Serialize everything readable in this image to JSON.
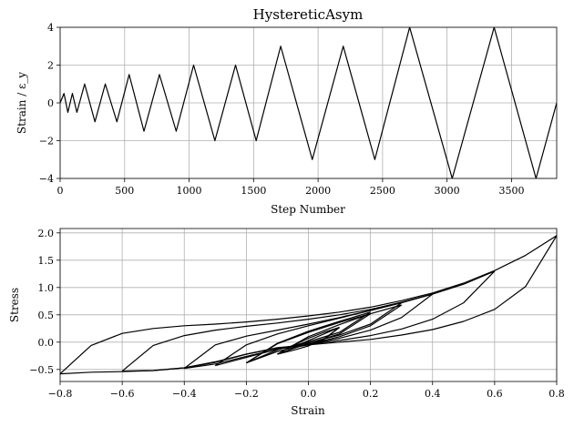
{
  "chart_data": [
    {
      "type": "line",
      "title": "HystereticAsym",
      "xlabel": "Step Number",
      "ylabel": "Strain / ε_y",
      "xlim": [
        0,
        3850
      ],
      "ylim": [
        -4,
        4
      ],
      "xticks": [
        0,
        500,
        1000,
        1500,
        2000,
        2500,
        3000,
        3500
      ],
      "yticks": [
        -4,
        -2,
        0,
        2,
        4
      ],
      "grid": true,
      "series": [
        {
          "x": [
            0,
            30,
            60,
            95,
            130,
            190,
            270,
            350,
            440,
            535,
            650,
            770,
            900,
            1035,
            1200,
            1360,
            1520,
            1710,
            1955,
            2195,
            2440,
            2710,
            3040,
            3365,
            3690,
            3850
          ],
          "y": [
            0,
            0.5,
            -0.5,
            0.5,
            -0.5,
            1,
            -1,
            1,
            -1,
            1.5,
            -1.5,
            1.5,
            -1.5,
            2,
            -2,
            2,
            -2,
            3,
            -3,
            3,
            -3,
            4,
            -4,
            4,
            -4,
            0
          ]
        }
      ]
    },
    {
      "type": "line",
      "title": "",
      "xlabel": "Strain",
      "ylabel": "Stress",
      "xlim": [
        -0.8,
        0.8
      ],
      "ylim": [
        -0.72,
        2.08
      ],
      "xticks": [
        -0.8,
        -0.6,
        -0.4,
        -0.2,
        0.0,
        0.2,
        0.4,
        0.6,
        0.8
      ],
      "xtick_labels": [
        "−0.8",
        "−0.6",
        "−0.4",
        "−0.2",
        "0.0",
        "0.2",
        "0.4",
        "0.6",
        "0.8"
      ],
      "yticks": [
        -0.5,
        0.0,
        0.5,
        1.0,
        1.5,
        2.0
      ],
      "ytick_labels": [
        "−0.5",
        "0.0",
        "0.5",
        "1.0",
        "1.5",
        "2.0"
      ],
      "grid": true,
      "series": [
        {
          "x": [
            -0.8,
            -0.7,
            -0.6,
            -0.5,
            -0.4,
            -0.3,
            -0.2,
            -0.1,
            0.0,
            0.1,
            0.2,
            0.3,
            0.4,
            0.5,
            0.6,
            0.7,
            0.8
          ],
          "y": [
            -0.58,
            -0.06,
            0.16,
            0.25,
            0.3,
            0.33,
            0.37,
            0.42,
            0.48,
            0.55,
            0.64,
            0.76,
            0.9,
            1.08,
            1.31,
            1.59,
            1.95
          ]
        },
        {
          "x": [
            0.8,
            0.7,
            0.6,
            0.5,
            0.4,
            0.3,
            0.2,
            0.1,
            0.0,
            -0.1,
            -0.2,
            -0.3,
            -0.4,
            -0.5,
            -0.6,
            -0.7,
            -0.8
          ],
          "y": [
            1.95,
            1.02,
            0.6,
            0.38,
            0.23,
            0.13,
            0.05,
            0.0,
            -0.05,
            -0.1,
            -0.22,
            -0.36,
            -0.47,
            -0.52,
            -0.54,
            -0.55,
            -0.58
          ]
        },
        {
          "x": [
            -0.6,
            -0.5,
            -0.4,
            -0.3,
            -0.2,
            -0.1,
            0.0,
            0.1,
            0.2,
            0.3,
            0.4,
            0.5,
            0.6
          ],
          "y": [
            -0.53,
            -0.06,
            0.12,
            0.22,
            0.29,
            0.35,
            0.42,
            0.5,
            0.6,
            0.73,
            0.88,
            1.06,
            1.3
          ]
        },
        {
          "x": [
            0.6,
            0.5,
            0.4,
            0.3,
            0.2,
            0.1,
            0.0,
            -0.1,
            -0.2,
            -0.3,
            -0.4,
            -0.5,
            -0.6
          ],
          "y": [
            1.3,
            0.72,
            0.42,
            0.24,
            0.12,
            0.03,
            -0.04,
            -0.11,
            -0.22,
            -0.37,
            -0.47,
            -0.52,
            -0.53
          ]
        },
        {
          "x": [
            -0.4,
            -0.3,
            -0.2,
            -0.1,
            0.0,
            0.1,
            0.2,
            0.3,
            0.4
          ],
          "y": [
            -0.48,
            -0.05,
            0.11,
            0.22,
            0.33,
            0.45,
            0.58,
            0.72,
            0.88
          ]
        },
        {
          "x": [
            0.4,
            0.3,
            0.2,
            0.1,
            0.0,
            -0.1,
            -0.2,
            -0.3,
            -0.4
          ],
          "y": [
            0.88,
            0.45,
            0.22,
            0.07,
            -0.04,
            -0.13,
            -0.26,
            -0.4,
            -0.48
          ]
        },
        {
          "x": [
            -0.3,
            -0.2,
            -0.1,
            0.0,
            0.1,
            0.2,
            0.3
          ],
          "y": [
            -0.43,
            -0.05,
            0.15,
            0.3,
            0.44,
            0.58,
            0.72
          ]
        },
        {
          "x": [
            0.3,
            0.2,
            0.1,
            0.0,
            -0.1,
            -0.2,
            -0.3
          ],
          "y": [
            0.72,
            0.33,
            0.13,
            -0.01,
            -0.13,
            -0.28,
            -0.43
          ]
        },
        {
          "x": [
            -0.2,
            -0.1,
            0.0,
            0.1,
            0.2,
            0.3
          ],
          "y": [
            -0.38,
            -0.03,
            0.18,
            0.36,
            0.52,
            0.68
          ]
        },
        {
          "x": [
            0.3,
            0.2,
            0.1,
            0.0,
            -0.1,
            -0.2
          ],
          "y": [
            0.68,
            0.3,
            0.1,
            -0.04,
            -0.17,
            -0.38
          ]
        },
        {
          "x": [
            -0.2,
            -0.1,
            0.0,
            0.1,
            0.2
          ],
          "y": [
            -0.38,
            -0.02,
            0.2,
            0.38,
            0.55
          ]
        },
        {
          "x": [
            0.2,
            0.1,
            0.0,
            -0.1,
            -0.2
          ],
          "y": [
            0.55,
            0.18,
            0.01,
            -0.14,
            -0.38
          ]
        },
        {
          "x": [
            -0.1,
            0.0,
            0.1,
            0.2
          ],
          "y": [
            -0.22,
            0.1,
            0.32,
            0.52
          ]
        },
        {
          "x": [
            0.2,
            0.1,
            0.0,
            -0.1
          ],
          "y": [
            0.52,
            0.15,
            -0.02,
            -0.22
          ]
        },
        {
          "x": [
            -0.1,
            -0.05,
            0.0,
            0.05,
            0.1
          ],
          "y": [
            -0.22,
            -0.06,
            0.07,
            0.18,
            0.27
          ]
        },
        {
          "x": [
            0.1,
            0.05,
            0.0,
            -0.05,
            -0.1
          ],
          "y": [
            0.27,
            0.06,
            -0.07,
            -0.15,
            -0.22
          ]
        },
        {
          "x": [
            -0.05,
            0.0,
            0.05,
            0.1
          ],
          "y": [
            -0.1,
            0.03,
            0.15,
            0.27
          ]
        },
        {
          "x": [
            0.1,
            0.05,
            0.0,
            -0.05
          ],
          "y": [
            0.27,
            0.05,
            -0.05,
            -0.1
          ]
        }
      ]
    }
  ]
}
